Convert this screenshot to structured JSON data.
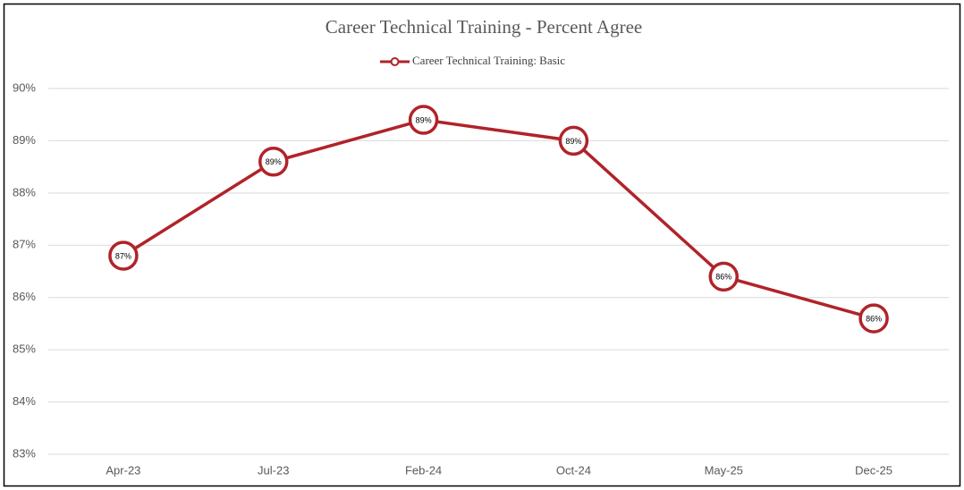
{
  "chart_data": {
    "type": "line",
    "title": "Career Technical Training - Percent Agree",
    "categories": [
      "Apr-23",
      "Jul-23",
      "Feb-24",
      "Oct-24",
      "May-25",
      "Dec-25"
    ],
    "series": [
      {
        "name": "Career Technical Training: Basic",
        "color": "#b0232a",
        "values": [
          86.8,
          88.6,
          89.4,
          89.0,
          86.4,
          85.6
        ],
        "value_labels": [
          "87%",
          "89%",
          "89%",
          "89%",
          "86%",
          "86%"
        ]
      }
    ],
    "ylim": [
      83,
      90
    ],
    "yticks": [
      {
        "value": 83,
        "label": "83%"
      },
      {
        "value": 84,
        "label": "84%"
      },
      {
        "value": 85,
        "label": "85%"
      },
      {
        "value": 86,
        "label": "86%"
      },
      {
        "value": 87,
        "label": "87%"
      },
      {
        "value": 88,
        "label": "88%"
      },
      {
        "value": 89,
        "label": "89%"
      },
      {
        "value": 90,
        "label": "90%"
      }
    ],
    "grid": true,
    "legend": "top"
  }
}
